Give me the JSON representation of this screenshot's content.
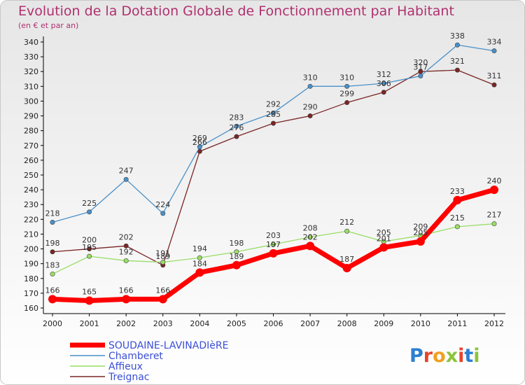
{
  "chart_data": {
    "type": "line",
    "title": "Evolution de la Dotation Globale de Fonctionnement par Habitant",
    "subtitle": "(en € et par an)",
    "xlabel": "",
    "ylabel": "",
    "categories": [
      "2000",
      "2001",
      "2002",
      "2003",
      "2004",
      "2005",
      "2006",
      "2007",
      "2008",
      "2009",
      "2010",
      "2011",
      "2012"
    ],
    "ylim": [
      160,
      340
    ],
    "yticks": [
      160,
      170,
      180,
      190,
      200,
      210,
      220,
      230,
      240,
      250,
      260,
      270,
      280,
      290,
      300,
      310,
      320,
      330,
      340
    ],
    "grid": false,
    "legend_position": "bottom-left",
    "series": [
      {
        "name": "SOUDAINE-LAVINADIèRE",
        "color": "#ff0000",
        "values": [
          166,
          165,
          166,
          166,
          184,
          189,
          197,
          202,
          187,
          201,
          205,
          233,
          240
        ]
      },
      {
        "name": "Chamberet",
        "color": "#4a90c8",
        "values": [
          218,
          225,
          247,
          224,
          269,
          283,
          292,
          310,
          310,
          312,
          317,
          338,
          334
        ]
      },
      {
        "name": "Affieux",
        "color": "#99dd66",
        "values": [
          183,
          195,
          192,
          191,
          194,
          198,
          203,
          208,
          212,
          205,
          209,
          215,
          217
        ]
      },
      {
        "name": "Treignac",
        "color": "#7a2525",
        "values": [
          198,
          200,
          202,
          189,
          266,
          276,
          285,
          290,
          299,
          306,
          320,
          321,
          311
        ]
      }
    ]
  },
  "logo": {
    "letters": [
      "P",
      "r",
      "o",
      "x",
      "i",
      "t",
      "i"
    ],
    "colors": [
      "#2a7fd1",
      "#e8442b",
      "#f0a020",
      "#8bc43c",
      "#e8442b",
      "#2a7fd1",
      "#8bc43c"
    ]
  }
}
